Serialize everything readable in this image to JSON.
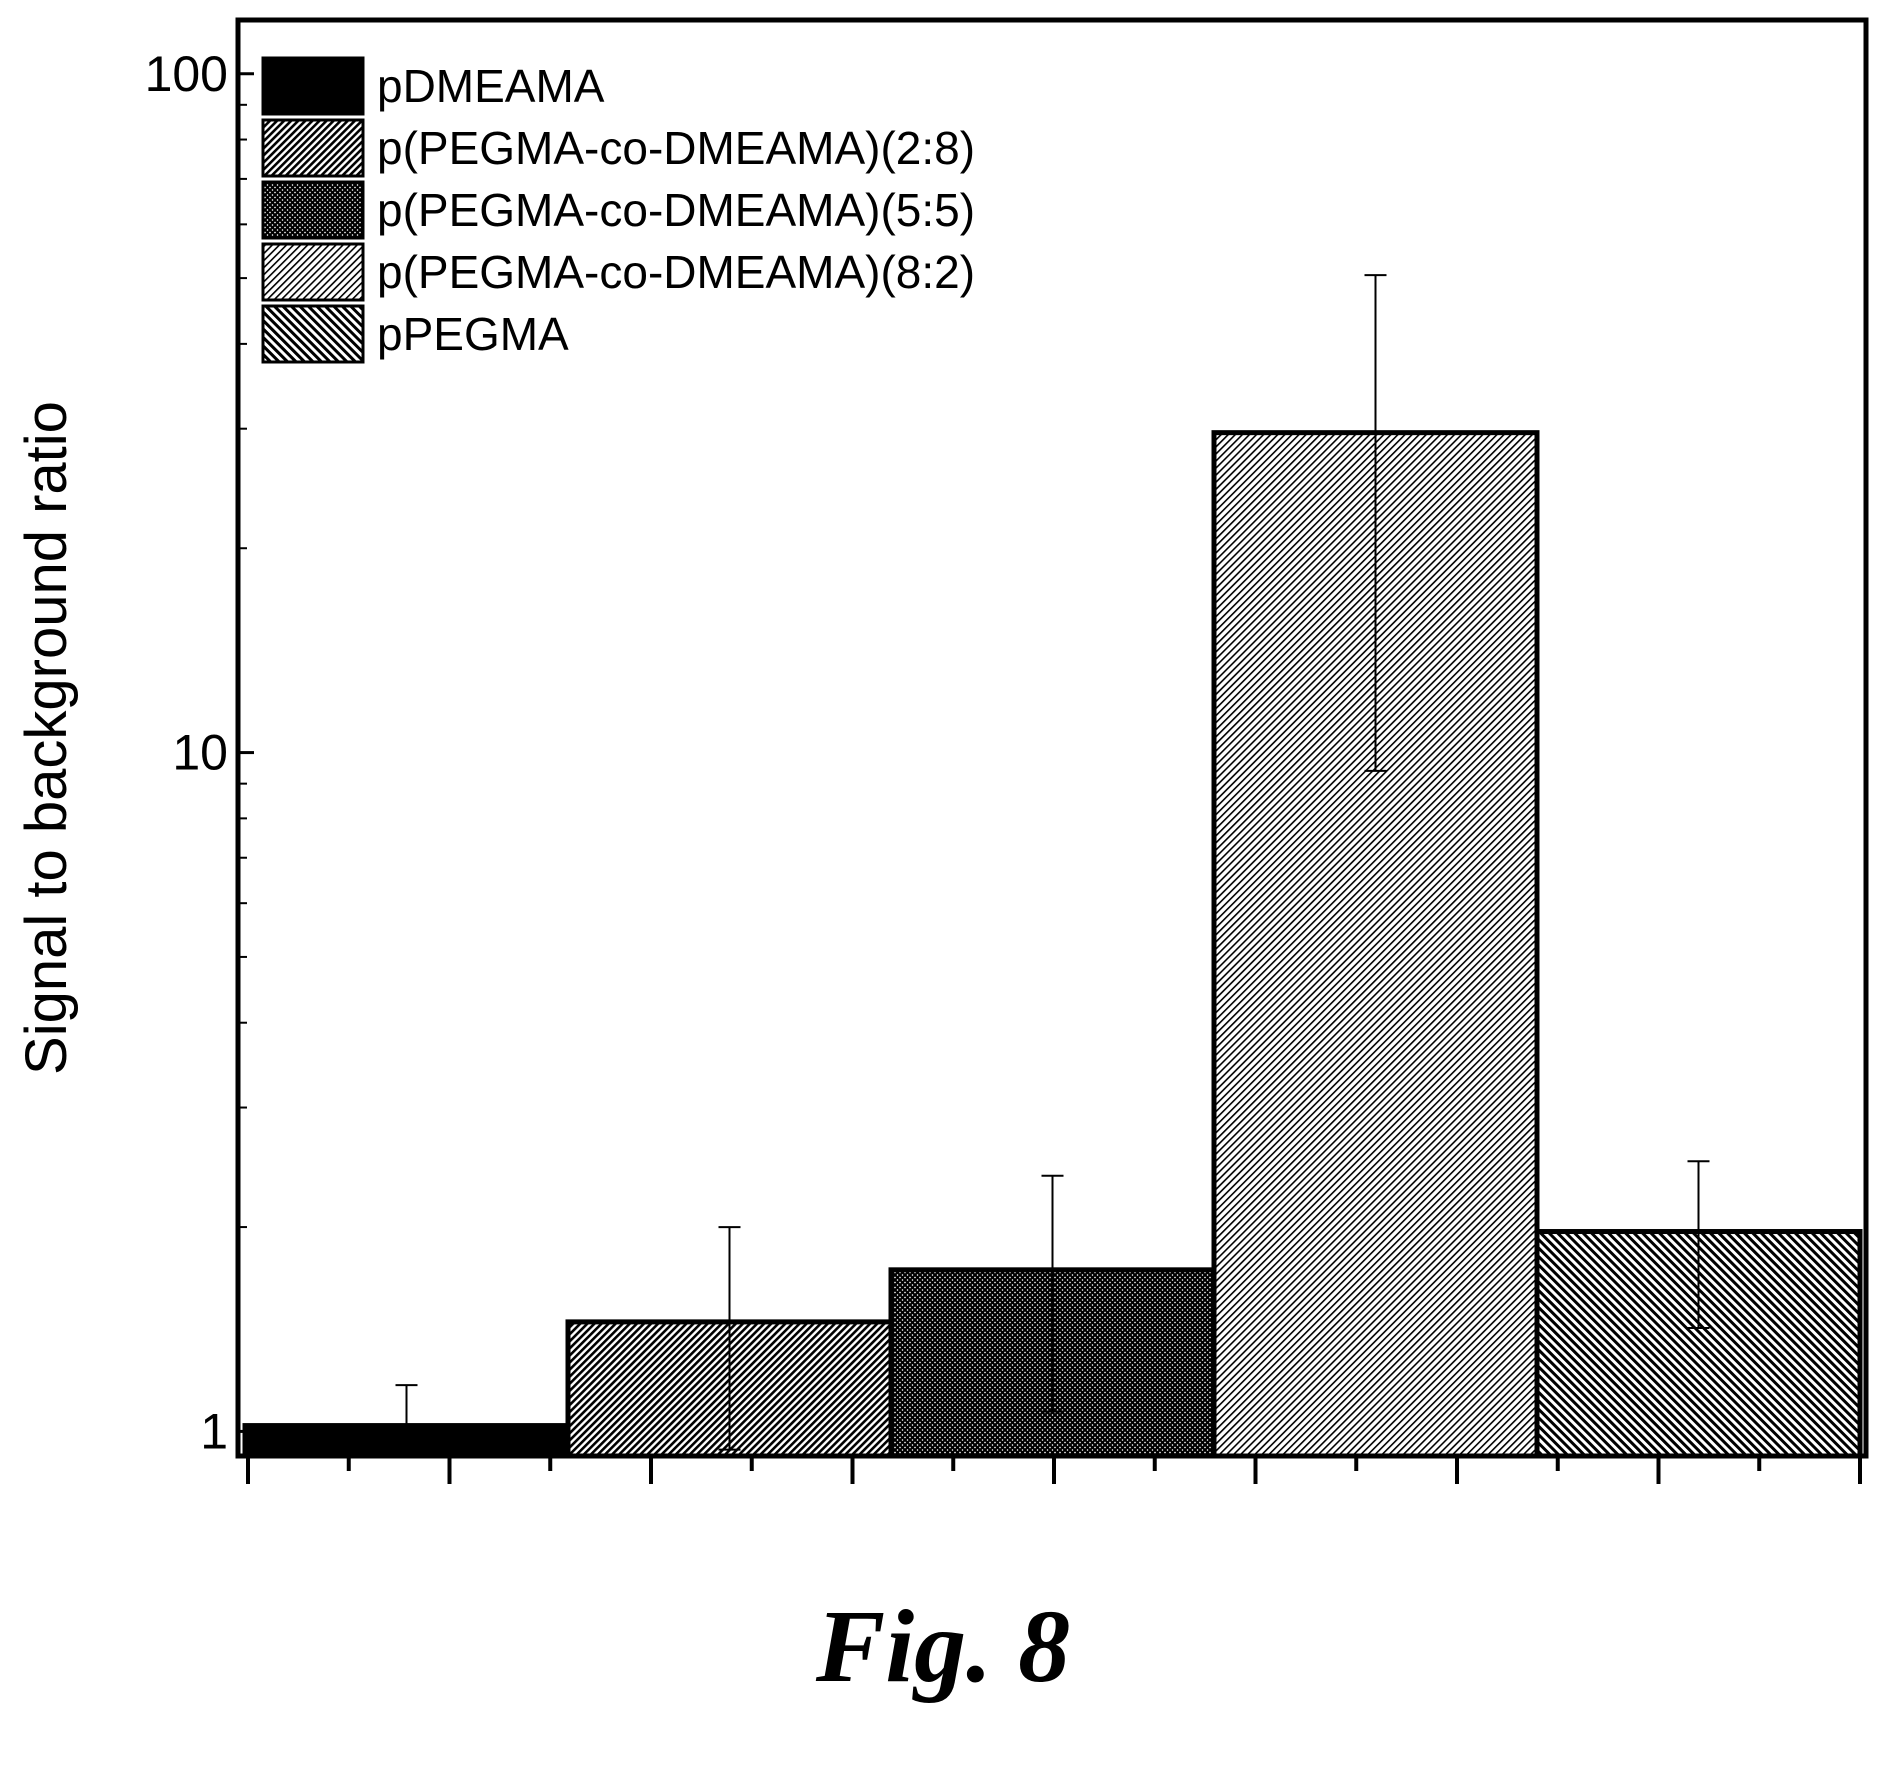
{
  "chart_data": {
    "type": "bar",
    "yscale": "log",
    "ylim": [
      0.92,
      120
    ],
    "ylabel": "Signal to background ratio",
    "xlabel": "",
    "yticks": [
      1,
      10,
      100
    ],
    "ytick_labels": [
      "1",
      "10",
      "100"
    ],
    "legend_position": "top-left",
    "series": [
      {
        "name": "pDMEAMA",
        "value": 1.02,
        "error_upper": 1.17,
        "error_lower": 1.02,
        "pattern": "solid-black",
        "color": "#000000"
      },
      {
        "name": "p(PEGMA-co-DMEAMA)(2:8)",
        "value": 1.45,
        "error_upper": 2.0,
        "error_lower": 0.94,
        "pattern": "dense-hatch",
        "color": "#7a7a7a"
      },
      {
        "name": "p(PEGMA-co-DMEAMA)(5:5)",
        "value": 1.73,
        "error_upper": 2.38,
        "error_lower": 1.07,
        "pattern": "dark-crosshatch",
        "color": "#3c3c3c"
      },
      {
        "name": "p(PEGMA-co-DMEAMA)(8:2)",
        "value": 29.6,
        "error_upper": 50.5,
        "error_lower": 9.4,
        "pattern": "light-hatch",
        "color": "#a8a8a8"
      },
      {
        "name": "pPEGMA",
        "value": 1.97,
        "error_upper": 2.5,
        "error_lower": 1.42,
        "pattern": "diagonal-hatch",
        "color": "#5a5a5a"
      }
    ]
  },
  "caption": "Fig. 8"
}
